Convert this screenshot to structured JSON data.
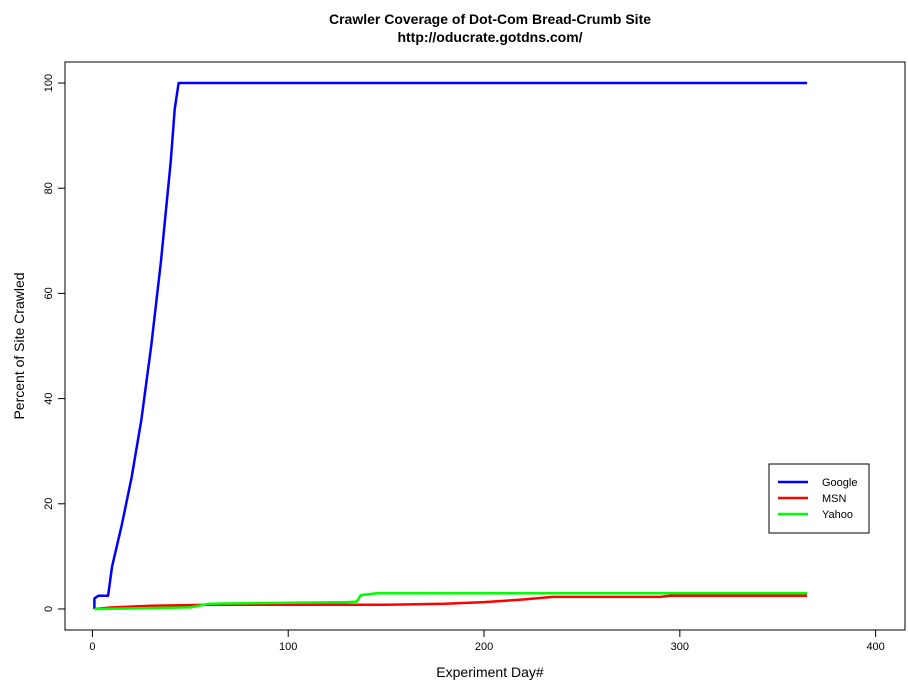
{
  "chart_data": {
    "type": "line",
    "title": "Crawler Coverage of Dot-Com Bread-Crumb Site",
    "subtitle": "http://oducrate.gotdns.com/",
    "xlabel": "Experiment Day#",
    "ylabel": "Percent of Site Crawled",
    "xlim": [
      -14,
      415
    ],
    "ylim": [
      -4,
      104
    ],
    "x_ticks": [
      0,
      100,
      200,
      300,
      400
    ],
    "y_ticks": [
      0,
      20,
      40,
      60,
      80,
      100
    ],
    "legend_position": "right",
    "series": [
      {
        "name": "Google",
        "color": "#0000ff",
        "points": [
          [
            1,
            0
          ],
          [
            1,
            2
          ],
          [
            3,
            2.5
          ],
          [
            8,
            2.5
          ],
          [
            10,
            8
          ],
          [
            15,
            16
          ],
          [
            20,
            25
          ],
          [
            25,
            36
          ],
          [
            30,
            50
          ],
          [
            35,
            66
          ],
          [
            40,
            85
          ],
          [
            42,
            95
          ],
          [
            44,
            100
          ],
          [
            365,
            100
          ]
        ]
      },
      {
        "name": "MSN",
        "color": "#ff0000",
        "points": [
          [
            1,
            0
          ],
          [
            10,
            0.3
          ],
          [
            30,
            0.6
          ],
          [
            60,
            0.8
          ],
          [
            100,
            0.8
          ],
          [
            150,
            0.8
          ],
          [
            180,
            1
          ],
          [
            200,
            1.3
          ],
          [
            220,
            1.8
          ],
          [
            235,
            2.3
          ],
          [
            290,
            2.3
          ],
          [
            295,
            2.5
          ],
          [
            365,
            2.5
          ]
        ]
      },
      {
        "name": "Yahoo",
        "color": "#00ff00",
        "points": [
          [
            1,
            0
          ],
          [
            20,
            0.1
          ],
          [
            50,
            0.3
          ],
          [
            60,
            1
          ],
          [
            130,
            1.3
          ],
          [
            135,
            1.4
          ],
          [
            137,
            2.6
          ],
          [
            145,
            3
          ],
          [
            220,
            3
          ],
          [
            365,
            3
          ]
        ]
      }
    ]
  }
}
